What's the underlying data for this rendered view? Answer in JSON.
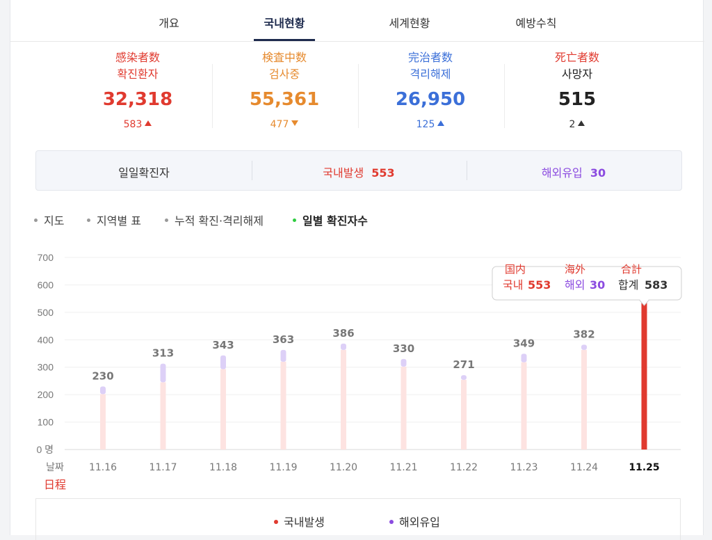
{
  "tabs": [
    "개요",
    "국내현황",
    "세계현황",
    "예방수칙"
  ],
  "stats": [
    {
      "cjk": "感染者数",
      "ko": "확진환자",
      "num": "32,318",
      "delta": "583",
      "dir": "up",
      "color": "#e03a2f",
      "labelColor": "#e03a2f"
    },
    {
      "cjk": "検査中数",
      "ko": "검사중",
      "num": "55,361",
      "delta": "477",
      "dir": "down",
      "color": "#e68a2e",
      "labelColor": "#e68a2e"
    },
    {
      "cjk": "完治者数",
      "ko": "격리해제",
      "num": "26,950",
      "delta": "125",
      "dir": "up",
      "color": "#3b6fd8",
      "labelColor": "#3b6fd8"
    },
    {
      "cjk": "死亡者数",
      "ko": "사망자",
      "num": "515",
      "delta": "2",
      "dir": "up",
      "color": "#222222",
      "labelColor": "#e03a2f"
    }
  ],
  "today": {
    "label": "일일확진자",
    "domestic_label": "국내발생",
    "domestic_value": "553",
    "overseas_label": "해외유입",
    "overseas_value": "30"
  },
  "subtabs": [
    "지도",
    "지역별 표",
    "누적 확진·격리해제",
    "일별 확진자수"
  ],
  "tooltip": {
    "cjk": [
      "国内",
      "海外",
      "合計"
    ],
    "ko": [
      "국내",
      "해외",
      "합계"
    ],
    "values": [
      "553",
      "30",
      "583"
    ]
  },
  "axis": {
    "x_label_ko": "날짜",
    "x_label_cjk": "日程",
    "y_unit": "명"
  },
  "legend": {
    "domestic": "국내발생",
    "overseas": "해외유입"
  },
  "colors": {
    "domestic": "#e03a2f",
    "overseas": "#8b4be0",
    "domestic_bar": "#fde3e1",
    "overseas_bar": "#ddd0f7"
  },
  "chart_data": {
    "type": "bar",
    "stacked": true,
    "categories": [
      "11.16",
      "11.17",
      "11.18",
      "11.19",
      "11.20",
      "11.21",
      "11.22",
      "11.23",
      "11.24",
      "11.25"
    ],
    "series": [
      {
        "name": "국내발생",
        "values": [
          202,
          245,
          293,
          320,
          363,
          302,
          254,
          318,
          363,
          553
        ]
      },
      {
        "name": "해외유입",
        "values": [
          28,
          68,
          50,
          43,
          23,
          28,
          17,
          31,
          19,
          30
        ]
      }
    ],
    "totals": [
      "230",
      "313",
      "343",
      "363",
      "386",
      "330",
      "271",
      "349",
      "382",
      "583"
    ],
    "yticks": [
      "0",
      "100",
      "200",
      "300",
      "400",
      "500",
      "600",
      "700"
    ],
    "ylim": [
      0,
      700
    ],
    "highlight_index": 9
  }
}
